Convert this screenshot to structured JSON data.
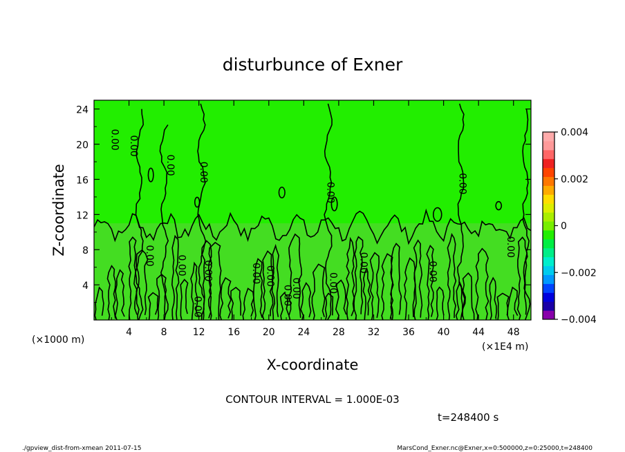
{
  "chart_data": {
    "type": "heatmap",
    "title": "disturbunce of Exner",
    "xlabel": "X-coordinate",
    "ylabel": "Z-coordinate",
    "x_unit": "(×1E4 m)",
    "y_unit": "(×1000 m)",
    "xlim": [
      0,
      50
    ],
    "ylim": [
      0,
      25
    ],
    "x_ticks": [
      "4",
      "8",
      "12",
      "16",
      "20",
      "24",
      "28",
      "32",
      "36",
      "40",
      "44",
      "48"
    ],
    "y_ticks": [
      "4",
      "8",
      "12",
      "16",
      "20",
      "24"
    ],
    "colorbar": {
      "min": -0.004,
      "max": 0.004,
      "tick_labels": [
        "0.004",
        "0.002",
        "0",
        "−0.002",
        "−0.004"
      ],
      "colors": [
        "#8800aa",
        "#1a00a6",
        "#0000dd",
        "#0044ff",
        "#0099ff",
        "#00ccee",
        "#00eecc",
        "#00ee88",
        "#00ee44",
        "#22ee00",
        "#77ee00",
        "#aaee00",
        "#ddee00",
        "#ffdd00",
        "#ffaa00",
        "#ff7700",
        "#ff4400",
        "#ee2222",
        "#ff6666",
        "#ff9999",
        "#ffaaaa"
      ]
    },
    "contour_interval": "CONTOUR INTERVAL = 1.000E-03",
    "contour_labels": [
      "0.00",
      "0.00",
      "0.00",
      "0.00",
      "0.00",
      "0.00",
      "0.00",
      "0.00",
      "0.00",
      "0.00",
      "0.00",
      "0.00",
      "0.00",
      "0.00",
      "0.00",
      "0.00",
      "0.00",
      "0.00"
    ],
    "time_label": "t=248400 s",
    "field_colors": {
      "upper": "#22ee00",
      "lower": "#44dd22"
    }
  },
  "footer": {
    "left": "./gpview_dist-from-xmean  2011-07-15",
    "right": "MarsCond_Exner.nc@Exner,x=0:500000,z=0:25000,t=248400"
  }
}
